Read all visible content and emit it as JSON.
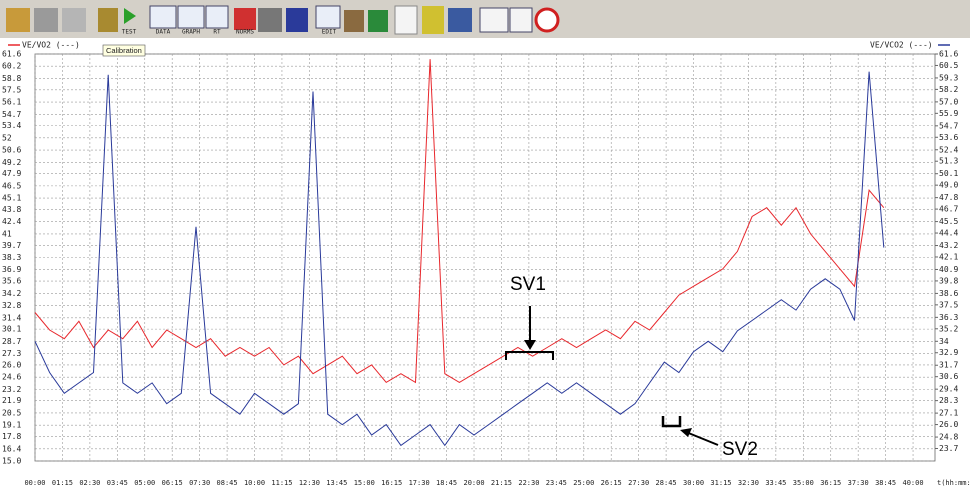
{
  "toolbar": [
    "TEST",
    "DATA",
    "GRAPH",
    "RT",
    "NORMS",
    "EDIT"
  ],
  "chart_data": {
    "type": "line",
    "tooltip": "Calibration",
    "x_label": "t(hh:mm:ss)",
    "annotations": [
      "SV1",
      "SV2"
    ],
    "grid": true,
    "x": [
      0,
      40,
      80,
      120,
      160,
      200,
      240,
      280,
      320,
      360,
      400,
      440,
      480,
      520,
      560,
      600,
      640,
      680,
      720,
      760,
      800,
      840,
      880,
      920,
      960,
      1000,
      1040,
      1080,
      1120,
      1160,
      1200,
      1240,
      1280,
      1320,
      1360,
      1400,
      1440,
      1480,
      1520,
      1560,
      1600,
      1640,
      1680,
      1720,
      1760,
      1800,
      1840,
      1880,
      1920,
      1960,
      2000,
      2040,
      2080,
      2120,
      2160,
      2200,
      2240,
      2280,
      2320
    ],
    "xlim": [
      0,
      2460
    ],
    "xticks": [
      {
        "value": 0,
        "label": "00:00"
      },
      {
        "value": 75,
        "label": "01:15"
      },
      {
        "value": 150,
        "label": "02:30"
      },
      {
        "value": 225,
        "label": "03:45"
      },
      {
        "value": 300,
        "label": "05:00"
      },
      {
        "value": 375,
        "label": "06:15"
      },
      {
        "value": 450,
        "label": "07:30"
      },
      {
        "value": 525,
        "label": "08:45"
      },
      {
        "value": 600,
        "label": "10:00"
      },
      {
        "value": 675,
        "label": "11:15"
      },
      {
        "value": 750,
        "label": "12:30"
      },
      {
        "value": 825,
        "label": "13:45"
      },
      {
        "value": 900,
        "label": "15:00"
      },
      {
        "value": 975,
        "label": "16:15"
      },
      {
        "value": 1050,
        "label": "17:30"
      },
      {
        "value": 1125,
        "label": "18:45"
      },
      {
        "value": 1200,
        "label": "20:00"
      },
      {
        "value": 1275,
        "label": "21:15"
      },
      {
        "value": 1350,
        "label": "22:30"
      },
      {
        "value": 1425,
        "label": "23:45"
      },
      {
        "value": 1500,
        "label": "25:00"
      },
      {
        "value": 1575,
        "label": "26:15"
      },
      {
        "value": 1650,
        "label": "27:30"
      },
      {
        "value": 1725,
        "label": "28:45"
      },
      {
        "value": 1800,
        "label": "30:00"
      },
      {
        "value": 1875,
        "label": "31:15"
      },
      {
        "value": 1950,
        "label": "32:30"
      },
      {
        "value": 2025,
        "label": "33:45"
      },
      {
        "value": 2100,
        "label": "35:00"
      },
      {
        "value": 2175,
        "label": "36:15"
      },
      {
        "value": 2250,
        "label": "37:30"
      },
      {
        "value": 2325,
        "label": "38:45"
      },
      {
        "value": 2400,
        "label": "40:00"
      }
    ],
    "ylim": [
      15.0,
      61.6
    ],
    "yticks": [
      61.6,
      60.2,
      58.8,
      57.5,
      56.1,
      54.7,
      53.4,
      52.0,
      50.6,
      49.2,
      47.9,
      46.5,
      45.1,
      43.8,
      42.4,
      41.0,
      39.7,
      38.3,
      36.9,
      35.6,
      34.2,
      32.8,
      31.4,
      30.1,
      28.7,
      27.3,
      {
        "value": 26.0,
        "label": "26.0"
      },
      24.6,
      23.2,
      21.9,
      20.5,
      19.1,
      17.8,
      16.4,
      {
        "value": 15.0,
        "label": "15.0"
      }
    ],
    "y2lim": [
      22.5,
      61.6
    ],
    "y2ticks": [
      61.6,
      60.5,
      59.3,
      58.2,
      {
        "value": 57.0,
        "label": "57.0"
      },
      55.9,
      54.7,
      53.6,
      52.4,
      51.3,
      50.1,
      {
        "value": 49.0,
        "label": "49.0"
      },
      47.8,
      46.7,
      45.5,
      44.4,
      43.2,
      42.1,
      40.9,
      39.8,
      38.6,
      37.5,
      36.3,
      35.2,
      34.0,
      32.9,
      31.7,
      30.6,
      29.4,
      28.3,
      27.1,
      {
        "value": 26.0,
        "label": "26.0"
      },
      24.8,
      23.7
    ],
    "series": [
      {
        "name": "VE/VO2 (---)",
        "color": "#e8282d",
        "values": [
          32,
          30,
          29,
          31,
          28,
          30,
          29,
          31,
          28,
          30,
          29,
          28,
          29,
          27,
          28,
          27,
          28,
          26,
          27,
          25,
          26,
          27,
          25,
          26,
          24,
          25,
          24,
          61,
          25,
          24,
          25,
          26,
          27,
          28,
          27,
          28,
          29,
          28,
          29,
          30,
          29,
          31,
          30,
          32,
          34,
          35,
          36,
          37,
          39,
          43,
          44,
          42,
          44,
          41,
          39,
          37,
          35,
          46,
          44
        ]
      },
      {
        "name": "VE/VCO2 (---)",
        "color": "#2a3a9a",
        "axis": "y2",
        "values": [
          34,
          31,
          29,
          30,
          31,
          59.6,
          30,
          29,
          30,
          28,
          29,
          45,
          29,
          28,
          27,
          29,
          28,
          27,
          28,
          58,
          27,
          26,
          27,
          25,
          26,
          24,
          25,
          26,
          24,
          26,
          25,
          26,
          27,
          28,
          29,
          30,
          29,
          30,
          29,
          28,
          27,
          28,
          30,
          32,
          31,
          33,
          34,
          33,
          35,
          36,
          37,
          38,
          37,
          39,
          40,
          39,
          36,
          59.9,
          43
        ]
      }
    ]
  }
}
